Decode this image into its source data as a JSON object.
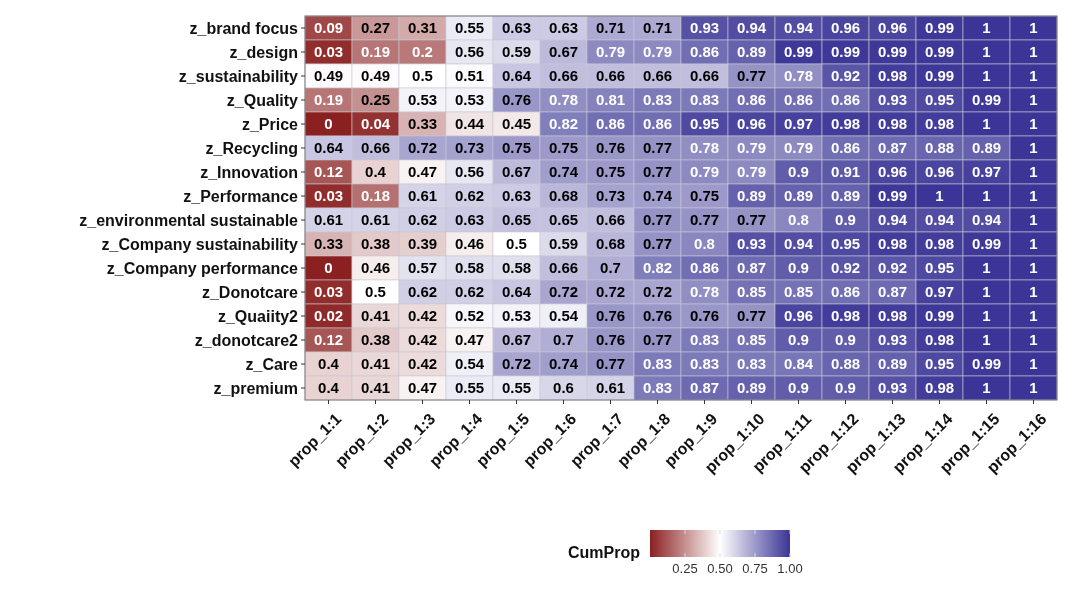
{
  "chart_data": {
    "type": "heatmap",
    "clabel": "CumProp",
    "categories": [
      "prop_1:1",
      "prop_1:2",
      "prop_1:3",
      "prop_1:4",
      "prop_1:5",
      "prop_1:6",
      "prop_1:7",
      "prop_1:8",
      "prop_1:9",
      "prop_1:10",
      "prop_1:11",
      "prop_1:12",
      "prop_1:13",
      "prop_1:14",
      "prop_1:15",
      "prop_1:16"
    ],
    "y_categories": [
      "z_brand focus",
      "z_design",
      "z_sustainability",
      "z_Quality",
      "z_Price",
      "z_Recycling",
      "z_Innovation",
      "z_Performance",
      "z_environmental sustainable",
      "z_Company sustainability",
      "z_Company performance",
      "z_Donotcare",
      "z_Quaiity2",
      "z_donotcare2",
      "z_Care",
      "z_premium"
    ],
    "cells": [
      [
        0.09,
        0.27,
        0.31,
        0.55,
        0.63,
        0.63,
        0.71,
        0.71,
        0.93,
        0.94,
        0.94,
        0.96,
        0.96,
        0.99,
        1,
        1
      ],
      [
        0.03,
        0.19,
        0.2,
        0.56,
        0.59,
        0.67,
        0.79,
        0.79,
        0.86,
        0.89,
        0.99,
        0.99,
        0.99,
        0.99,
        1,
        1
      ],
      [
        0.49,
        0.49,
        0.5,
        0.51,
        0.64,
        0.66,
        0.66,
        0.66,
        0.66,
        0.77,
        0.78,
        0.92,
        0.98,
        0.99,
        1,
        1
      ],
      [
        0.19,
        0.25,
        0.53,
        0.53,
        0.76,
        0.78,
        0.81,
        0.83,
        0.83,
        0.86,
        0.86,
        0.86,
        0.93,
        0.95,
        0.99,
        1
      ],
      [
        0,
        0.04,
        0.33,
        0.44,
        0.45,
        0.82,
        0.86,
        0.86,
        0.95,
        0.96,
        0.97,
        0.98,
        0.98,
        0.98,
        1,
        1
      ],
      [
        0.64,
        0.66,
        0.72,
        0.73,
        0.75,
        0.75,
        0.76,
        0.77,
        0.78,
        0.79,
        0.79,
        0.86,
        0.87,
        0.88,
        0.89,
        1
      ],
      [
        0.12,
        0.4,
        0.47,
        0.56,
        0.67,
        0.74,
        0.75,
        0.77,
        0.79,
        0.79,
        0.9,
        0.91,
        0.96,
        0.96,
        0.97,
        1
      ],
      [
        0.03,
        0.18,
        0.61,
        0.62,
        0.63,
        0.68,
        0.73,
        0.74,
        0.75,
        0.89,
        0.89,
        0.89,
        0.99,
        1,
        1,
        1
      ],
      [
        0.61,
        0.61,
        0.62,
        0.63,
        0.65,
        0.65,
        0.66,
        0.77,
        0.77,
        0.77,
        0.8,
        0.9,
        0.94,
        0.94,
        0.94,
        1
      ],
      [
        0.33,
        0.38,
        0.39,
        0.46,
        0.5,
        0.59,
        0.68,
        0.77,
        0.8,
        0.93,
        0.94,
        0.95,
        0.98,
        0.98,
        0.99,
        1
      ],
      [
        0,
        0.46,
        0.57,
        0.58,
        0.58,
        0.66,
        0.7,
        0.82,
        0.86,
        0.87,
        0.9,
        0.92,
        0.92,
        0.95,
        1,
        1
      ],
      [
        0.03,
        0.5,
        0.62,
        0.62,
        0.64,
        0.72,
        0.72,
        0.72,
        0.78,
        0.85,
        0.85,
        0.86,
        0.87,
        0.97,
        1,
        1
      ],
      [
        0.02,
        0.41,
        0.42,
        0.52,
        0.53,
        0.54,
        0.76,
        0.76,
        0.76,
        0.77,
        0.96,
        0.98,
        0.98,
        0.99,
        1,
        1
      ],
      [
        0.12,
        0.38,
        0.42,
        0.47,
        0.67,
        0.7,
        0.76,
        0.77,
        0.83,
        0.85,
        0.9,
        0.9,
        0.93,
        0.98,
        1,
        1
      ],
      [
        0.4,
        0.41,
        0.42,
        0.54,
        0.72,
        0.74,
        0.77,
        0.83,
        0.83,
        0.83,
        0.84,
        0.88,
        0.89,
        0.95,
        0.99,
        1
      ],
      [
        0.4,
        0.41,
        0.47,
        0.55,
        0.55,
        0.6,
        0.61,
        0.83,
        0.87,
        0.89,
        0.9,
        0.9,
        0.93,
        0.98,
        1,
        1
      ]
    ],
    "data_labels": true,
    "clim": [
      0,
      1
    ],
    "cticks": [
      0.25,
      {
        "value": 0.5,
        "label": "0.50"
      },
      {
        "value": 0.75,
        "label": "0.75"
      },
      {
        "value": 1,
        "label": "1.00"
      }
    ]
  }
}
